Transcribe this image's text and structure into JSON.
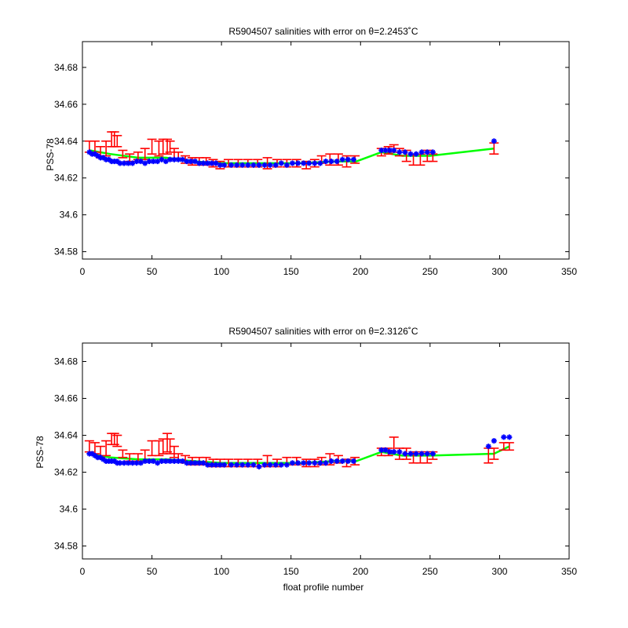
{
  "colors": {
    "background": "#ffffff",
    "axes": "#000000",
    "errorbar": "#ff0000",
    "fit_line": "#00ff00",
    "float_marker": "#0000ff"
  },
  "chart_data": [
    {
      "type": "scatter",
      "title": "R5904507 salinities with error on θ=2.2453˚C",
      "xlabel": "",
      "ylabel": "PSS-78",
      "xlim": [
        0,
        350
      ],
      "ylim": [
        34.576,
        34.694
      ],
      "xticks": [
        0,
        50,
        100,
        150,
        200,
        250,
        300,
        350
      ],
      "yticks": [
        34.58,
        34.6,
        34.62,
        34.64,
        34.66,
        34.68
      ],
      "xtick_labels": [
        "0",
        "50",
        "100",
        "150",
        "200",
        "250",
        "300",
        "350"
      ],
      "ytick_labels": [
        "34.58",
        "34.6",
        "34.62",
        "34.64",
        "34.66",
        "34.68"
      ],
      "grid": false,
      "series": [
        {
          "role": "float-salinity",
          "marker": "star",
          "x": [
            5,
            7,
            9,
            11,
            13,
            15,
            17,
            19,
            21,
            23,
            25,
            27,
            30,
            33,
            36,
            39,
            42,
            45,
            48,
            51,
            54,
            57,
            60,
            63,
            66,
            69,
            72,
            75,
            78,
            81,
            84,
            87,
            90,
            93,
            96,
            99,
            102,
            107,
            111,
            115,
            119,
            123,
            127,
            131,
            135,
            139,
            143,
            147,
            151,
            155,
            159,
            163,
            167,
            171,
            175,
            179,
            183,
            187,
            191,
            195,
            215,
            218,
            221,
            224,
            228,
            232,
            236,
            240,
            244,
            248,
            252,
            296
          ],
          "y": [
            34.634,
            34.633,
            34.633,
            34.632,
            34.631,
            34.631,
            34.63,
            34.63,
            34.629,
            34.629,
            34.629,
            34.628,
            34.628,
            34.628,
            34.628,
            34.629,
            34.629,
            34.628,
            34.629,
            34.629,
            34.629,
            34.63,
            34.629,
            34.63,
            34.63,
            34.63,
            34.63,
            34.629,
            34.629,
            34.629,
            34.628,
            34.628,
            34.628,
            34.628,
            34.628,
            34.627,
            34.627,
            34.627,
            34.627,
            34.627,
            34.627,
            34.627,
            34.627,
            34.627,
            34.627,
            34.627,
            34.628,
            34.627,
            34.628,
            34.628,
            34.628,
            34.628,
            34.628,
            34.628,
            34.629,
            34.629,
            34.629,
            34.63,
            34.63,
            34.63,
            34.635,
            34.635,
            34.635,
            34.635,
            34.634,
            34.634,
            34.633,
            34.633,
            34.634,
            34.634,
            34.634,
            34.64
          ]
        },
        {
          "role": "mapped-salinity-with-error",
          "x": [
            5,
            9,
            13,
            17,
            21,
            23,
            25,
            29,
            34,
            40,
            45,
            50,
            55,
            58,
            61,
            63,
            66,
            69,
            74,
            79,
            84,
            89,
            94,
            99,
            105,
            112,
            119,
            126,
            133,
            140,
            147,
            154,
            161,
            167,
            172,
            178,
            184,
            190,
            196,
            215,
            220,
            224,
            228,
            233,
            238,
            243,
            248,
            252,
            296
          ],
          "y": [
            34.637,
            34.637,
            34.634,
            34.636,
            34.641,
            34.641,
            34.64,
            34.633,
            34.631,
            34.632,
            34.633,
            34.637,
            34.636,
            34.637,
            34.637,
            34.637,
            34.633,
            34.632,
            34.63,
            34.629,
            34.629,
            34.629,
            34.628,
            34.627,
            34.628,
            34.628,
            34.628,
            34.628,
            34.628,
            34.628,
            34.628,
            34.628,
            34.627,
            34.628,
            34.63,
            34.63,
            34.63,
            34.629,
            34.63,
            34.634,
            34.635,
            34.636,
            34.634,
            34.632,
            34.63,
            34.63,
            34.632,
            34.631,
            34.636
          ],
          "err": [
            0.003,
            0.003,
            0.003,
            0.004,
            0.004,
            0.004,
            0.003,
            0.002,
            0.002,
            0.002,
            0.003,
            0.004,
            0.004,
            0.004,
            0.004,
            0.003,
            0.003,
            0.002,
            0.002,
            0.002,
            0.002,
            0.002,
            0.002,
            0.002,
            0.002,
            0.002,
            0.002,
            0.002,
            0.003,
            0.002,
            0.002,
            0.002,
            0.002,
            0.002,
            0.002,
            0.003,
            0.003,
            0.003,
            0.002,
            0.002,
            0.002,
            0.002,
            0.002,
            0.003,
            0.003,
            0.003,
            0.003,
            0.002,
            0.003
          ]
        },
        {
          "role": "fit",
          "x": [
            5,
            20,
            40,
            60,
            80,
            100,
            120,
            140,
            160,
            180,
            197,
            215,
            230,
            250,
            296
          ],
          "y": [
            34.635,
            34.633,
            34.631,
            34.631,
            34.629,
            34.628,
            34.628,
            34.628,
            34.628,
            34.629,
            34.629,
            34.634,
            34.632,
            34.632,
            34.636
          ]
        }
      ]
    },
    {
      "type": "scatter",
      "title": "R5904507 salinities with error on θ=2.3126˚C",
      "xlabel": "float profile number",
      "ylabel": "PSS-78",
      "xlim": [
        0,
        350
      ],
      "ylim": [
        34.573,
        34.69
      ],
      "xticks": [
        0,
        50,
        100,
        150,
        200,
        250,
        300,
        350
      ],
      "yticks": [
        34.58,
        34.6,
        34.62,
        34.64,
        34.66,
        34.68
      ],
      "xtick_labels": [
        "0",
        "50",
        "100",
        "150",
        "200",
        "250",
        "300",
        "350"
      ],
      "ytick_labels": [
        "34.58",
        "34.6",
        "34.62",
        "34.64",
        "34.66",
        "34.68"
      ],
      "grid": false,
      "series": [
        {
          "role": "float-salinity",
          "marker": "star",
          "x": [
            5,
            7,
            9,
            11,
            13,
            15,
            17,
            19,
            21,
            23,
            25,
            27,
            30,
            33,
            36,
            39,
            42,
            45,
            48,
            51,
            54,
            57,
            60,
            63,
            66,
            69,
            72,
            75,
            78,
            81,
            84,
            87,
            90,
            93,
            96,
            99,
            102,
            107,
            111,
            115,
            119,
            123,
            127,
            131,
            135,
            139,
            143,
            147,
            151,
            155,
            159,
            163,
            167,
            171,
            175,
            179,
            183,
            187,
            191,
            195,
            215,
            218,
            221,
            224,
            228,
            232,
            236,
            240,
            244,
            248,
            252,
            292,
            296,
            303,
            307
          ],
          "y": [
            34.63,
            34.63,
            34.629,
            34.628,
            34.628,
            34.627,
            34.626,
            34.626,
            34.626,
            34.626,
            34.625,
            34.625,
            34.625,
            34.625,
            34.625,
            34.625,
            34.625,
            34.626,
            34.626,
            34.626,
            34.625,
            34.626,
            34.626,
            34.626,
            34.626,
            34.626,
            34.626,
            34.625,
            34.625,
            34.625,
            34.625,
            34.625,
            34.624,
            34.624,
            34.624,
            34.624,
            34.624,
            34.624,
            34.624,
            34.624,
            34.624,
            34.624,
            34.623,
            34.624,
            34.624,
            34.624,
            34.624,
            34.624,
            34.625,
            34.625,
            34.625,
            34.625,
            34.625,
            34.625,
            34.625,
            34.626,
            34.626,
            34.626,
            34.626,
            34.626,
            34.632,
            34.632,
            34.631,
            34.631,
            34.631,
            34.63,
            34.63,
            34.63,
            34.63,
            34.63,
            34.63,
            34.634,
            34.637,
            34.639,
            34.639
          ]
        },
        {
          "role": "mapped-salinity-with-error",
          "x": [
            5,
            9,
            13,
            17,
            21,
            23,
            25,
            29,
            34,
            40,
            45,
            50,
            55,
            58,
            61,
            63,
            66,
            69,
            74,
            79,
            84,
            89,
            94,
            99,
            105,
            112,
            119,
            126,
            133,
            140,
            147,
            154,
            161,
            167,
            172,
            178,
            184,
            190,
            196,
            215,
            220,
            224,
            228,
            233,
            238,
            243,
            248,
            252,
            292,
            296,
            303,
            307
          ],
          "y": [
            34.634,
            34.633,
            34.631,
            34.633,
            34.638,
            34.638,
            34.637,
            34.63,
            34.628,
            34.628,
            34.629,
            34.633,
            34.633,
            34.634,
            34.636,
            34.634,
            34.631,
            34.628,
            34.627,
            34.626,
            34.626,
            34.626,
            34.625,
            34.625,
            34.625,
            34.625,
            34.625,
            34.625,
            34.626,
            34.625,
            34.626,
            34.626,
            34.625,
            34.625,
            34.626,
            34.627,
            34.627,
            34.625,
            34.626,
            34.631,
            34.631,
            34.635,
            34.63,
            34.63,
            34.628,
            34.628,
            34.628,
            34.629,
            34.629,
            34.63,
            34.634,
            34.634
          ],
          "err": [
            0.003,
            0.003,
            0.003,
            0.004,
            0.003,
            0.003,
            0.003,
            0.002,
            0.002,
            0.002,
            0.003,
            0.004,
            0.004,
            0.004,
            0.005,
            0.004,
            0.003,
            0.002,
            0.002,
            0.002,
            0.002,
            0.002,
            0.002,
            0.002,
            0.002,
            0.002,
            0.002,
            0.002,
            0.003,
            0.002,
            0.002,
            0.002,
            0.002,
            0.002,
            0.002,
            0.003,
            0.002,
            0.002,
            0.002,
            0.002,
            0.002,
            0.004,
            0.003,
            0.003,
            0.003,
            0.003,
            0.003,
            0.002,
            0.004,
            0.003,
            0.002,
            0.002
          ]
        },
        {
          "role": "fit",
          "x": [
            5,
            20,
            40,
            60,
            80,
            100,
            120,
            140,
            160,
            180,
            197,
            215,
            230,
            250,
            296,
            307
          ],
          "y": [
            34.63,
            34.628,
            34.627,
            34.627,
            34.626,
            34.625,
            34.625,
            34.625,
            34.625,
            34.626,
            34.626,
            34.631,
            34.629,
            34.629,
            34.63,
            34.634
          ]
        }
      ]
    }
  ]
}
